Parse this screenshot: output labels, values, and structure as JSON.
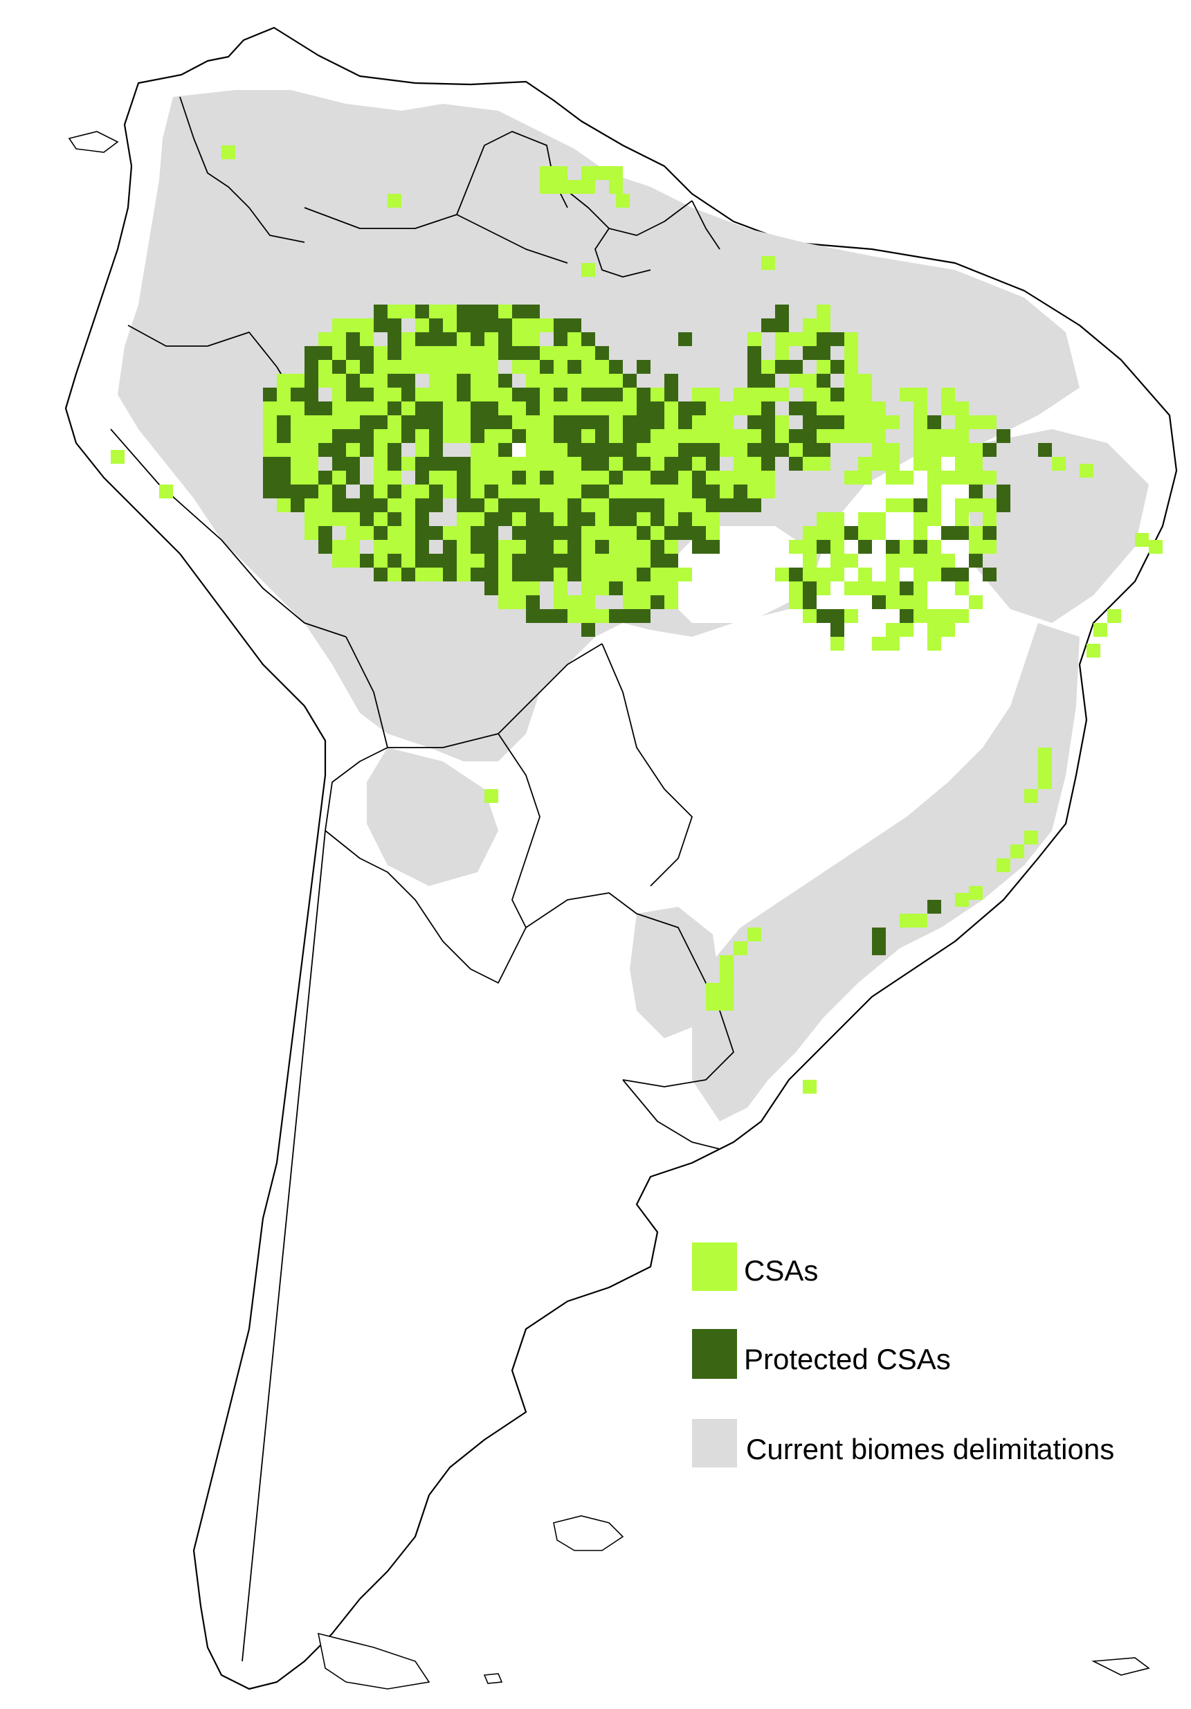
{
  "colors": {
    "csa": "#b4fc3c",
    "protected_csa": "#3a6614",
    "biome": "#dcdcdc",
    "land": "#ffffff",
    "outline": "#000000"
  },
  "legend": {
    "items": [
      {
        "key": "csa",
        "label": "CSAs",
        "color": "#b4fc3c"
      },
      {
        "key": "protected_csa",
        "label": "Protected CSAs",
        "color": "#3a6614"
      },
      {
        "key": "biome",
        "label": "Current biomes delimitations",
        "color": "#dcdcdc"
      }
    ]
  }
}
